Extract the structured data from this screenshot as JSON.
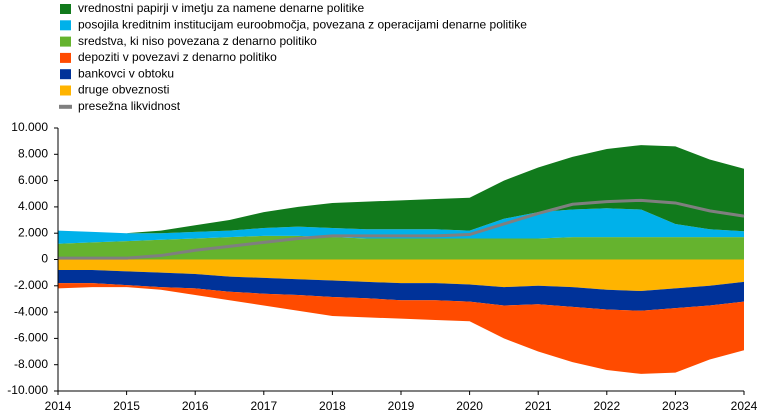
{
  "chart_data": {
    "type": "area",
    "x": [
      2014,
      2014.5,
      2015,
      2015.5,
      2016,
      2016.5,
      2017,
      2017.5,
      2018,
      2018.5,
      2019,
      2019.5,
      2020,
      2020.5,
      2021,
      2021.5,
      2022,
      2022.5,
      2023,
      2023.5,
      2024
    ],
    "series": [
      {
        "name": "vrednostni papirji v imetju za namene denarne politike",
        "color": "#117a1c",
        "values": [
          0,
          0,
          0,
          200,
          500,
          800,
          1200,
          1500,
          1900,
          2100,
          2200,
          2300,
          2500,
          2900,
          3400,
          4000,
          4500,
          4900,
          5900,
          5300,
          4750
        ]
      },
      {
        "name": "posojila kreditnim institucijam euroobmočja, povezana z operacijami denarne politike",
        "color": "#00b1ea",
        "values": [
          1000,
          800,
          600,
          500,
          500,
          500,
          600,
          700,
          700,
          700,
          700,
          700,
          600,
          1500,
          2000,
          2100,
          2200,
          2100,
          1000,
          600,
          450
        ]
      },
      {
        "name": "sredstva, ki niso povezana z denarno politiko",
        "color": "#65b32e",
        "values": [
          1200,
          1300,
          1400,
          1500,
          1600,
          1700,
          1800,
          1800,
          1700,
          1600,
          1600,
          1600,
          1600,
          1600,
          1600,
          1700,
          1700,
          1700,
          1700,
          1700,
          1700
        ]
      },
      {
        "name": "depoziti v povezavi  z denarno politiko",
        "color": "#ff4b00",
        "values": [
          -400,
          -300,
          -150,
          -200,
          -500,
          -650,
          -900,
          -1200,
          -1450,
          -1450,
          -1400,
          -1500,
          -1500,
          -2500,
          -3600,
          -4200,
          -4600,
          -4800,
          -4900,
          -4100,
          -3700
        ]
      },
      {
        "name": "bankovci v obtoku",
        "color": "#003299",
        "values": [
          -1000,
          -1000,
          -1050,
          -1100,
          -1100,
          -1150,
          -1200,
          -1200,
          -1250,
          -1250,
          -1300,
          -1300,
          -1300,
          -1400,
          -1400,
          -1500,
          -1500,
          -1500,
          -1500,
          -1500,
          -1500
        ]
      },
      {
        "name": "druge obveznosti",
        "color": "#ffb400",
        "values": [
          -800,
          -800,
          -900,
          -1000,
          -1100,
          -1300,
          -1400,
          -1500,
          -1600,
          -1700,
          -1800,
          -1800,
          -1900,
          -2100,
          -2000,
          -2100,
          -2300,
          -2400,
          -2200,
          -2000,
          -1700
        ]
      },
      {
        "name": "presežna likvidnost",
        "color": "#7f7f7f",
        "type": "line",
        "values": [
          100,
          100,
          100,
          300,
          700,
          1000,
          1300,
          1600,
          1800,
          1800,
          1800,
          1800,
          1900,
          2700,
          3500,
          4200,
          4400,
          4500,
          4300,
          3700,
          3300
        ]
      }
    ],
    "xlim": [
      2014,
      2024
    ],
    "xticks": [
      2014,
      2015,
      2016,
      2017,
      2018,
      2019,
      2020,
      2021,
      2022,
      2023,
      2024
    ],
    "ylim": [
      -10000,
      10000
    ],
    "yticks": [
      {
        "value": -10000,
        "label": "-10.000"
      },
      {
        "value": -8000,
        "label": "-8.000"
      },
      {
        "value": -6000,
        "label": "-6.000"
      },
      {
        "value": -4000,
        "label": "-4.000"
      },
      {
        "value": -2000,
        "label": "-2.000"
      },
      0,
      {
        "value": 2000,
        "label": "2.000"
      },
      {
        "value": 4000,
        "label": "4.000"
      },
      {
        "value": 6000,
        "label": "6.000"
      },
      {
        "value": 8000,
        "label": "8.000"
      },
      {
        "value": 10000,
        "label": "10.000"
      }
    ],
    "grid": false
  }
}
